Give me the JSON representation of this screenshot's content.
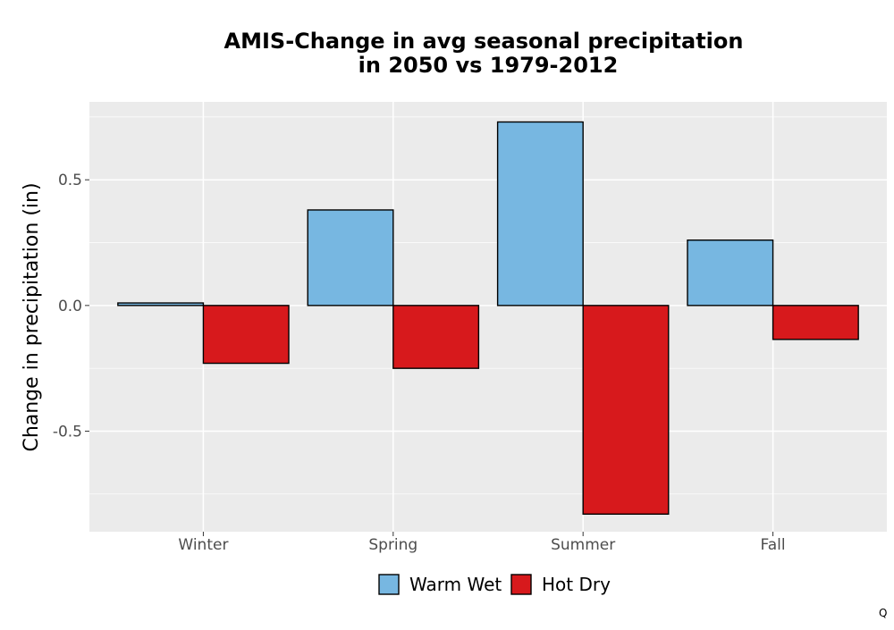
{
  "colors": {
    "panel_background": "#EBEBEB",
    "gridline": "#FFFFFF",
    "bar_outline": "#000000"
  },
  "chart_data": {
    "type": "bar",
    "title_line1": "AMIS-Change in avg seasonal precipitation",
    "title_line2": "in 2050 vs 1979-2012",
    "xlabel": "",
    "ylabel": "Change in precipitation (in)",
    "categories": [
      "Winter",
      "Spring",
      "Summer",
      "Fall"
    ],
    "series": [
      {
        "name": "Warm Wet",
        "color": "#77B7E1",
        "values": [
          0.01,
          0.38,
          0.73,
          0.26
        ]
      },
      {
        "name": "Hot Dry",
        "color": "#D7191C",
        "values": [
          -0.23,
          -0.25,
          -0.83,
          -0.135
        ]
      }
    ],
    "ylim": [
      -0.9,
      0.81
    ],
    "yticks": [
      0.5,
      0.0,
      -0.5
    ],
    "ytick_labels": [
      "0.5",
      "0.0",
      "-0.5"
    ],
    "grid": true,
    "legend_position": "bottom"
  },
  "corner_mark": "Q"
}
